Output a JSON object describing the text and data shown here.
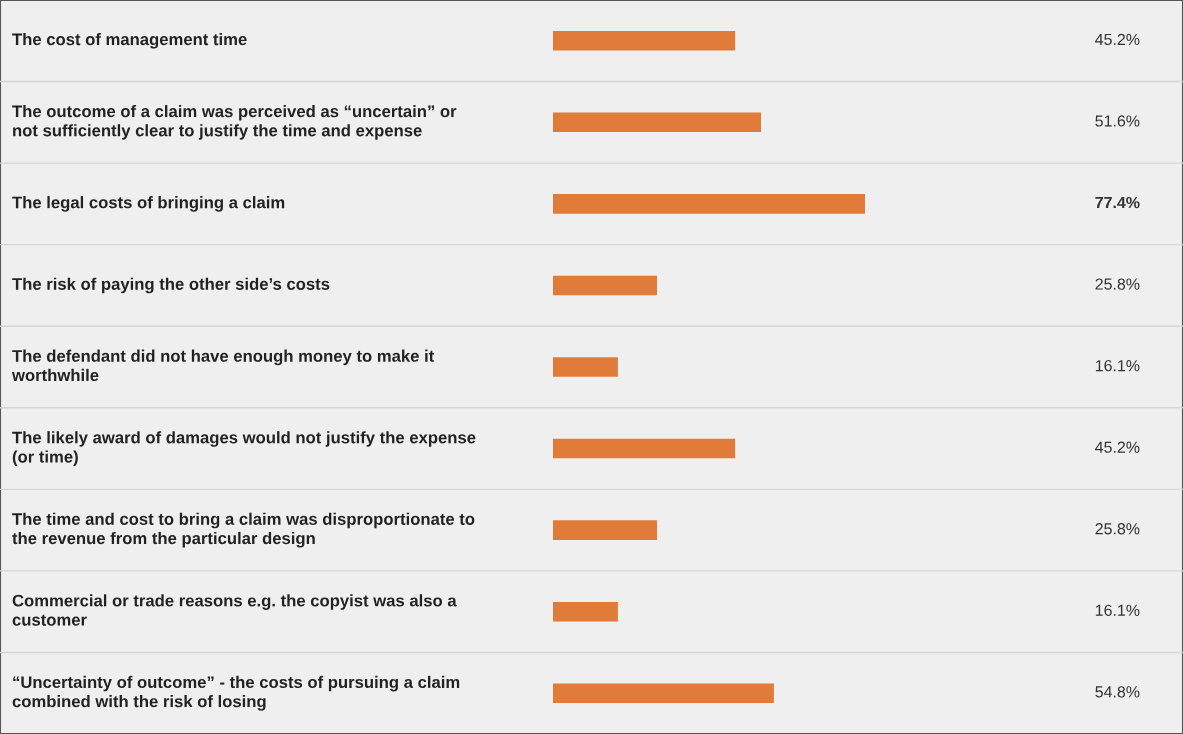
{
  "chart_data": {
    "type": "bar",
    "orientation": "horizontal",
    "categories": [
      "The cost of management time",
      "The outcome of a claim was perceived as “uncertain” or not sufficiently clear to justify the time and expense",
      "The legal costs of bringing a claim",
      "The risk of paying the other side’s costs",
      "The defendant did not have enough money to make it worthwhile",
      "The likely award of damages would not justify the expense (or time)",
      "The time and cost to bring a claim was disproportionate to the revenue from the particular design",
      "Commercial or trade reasons e.g. the copyist was also a customer",
      "“Uncertainty of outcome” - the costs of pursuing a claim combined with the risk of losing"
    ],
    "values": [
      45.2,
      51.6,
      77.4,
      25.8,
      16.1,
      45.2,
      25.8,
      16.1,
      54.8
    ],
    "value_labels": [
      "45.2%",
      "51.6%",
      "77.4%",
      "25.8%",
      "16.1%",
      "45.2%",
      "25.8%",
      "16.1%",
      "54.8%"
    ],
    "color": "#e07b39"
  }
}
